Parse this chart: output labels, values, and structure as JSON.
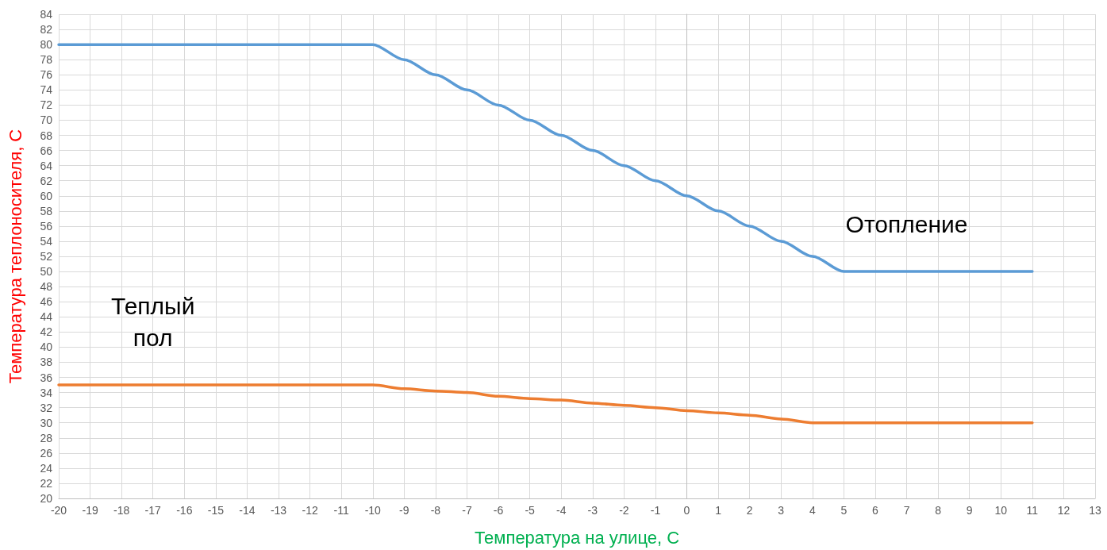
{
  "chart_data": {
    "type": "line",
    "xlabel": "Температура на улице, С",
    "ylabel": "Температура теплоносителя, С",
    "x": [
      -20,
      -19,
      -18,
      -17,
      -16,
      -15,
      -14,
      -13,
      -12,
      -11,
      -10,
      -9,
      -8,
      -7,
      -6,
      -5,
      -4,
      -3,
      -2,
      -1,
      0,
      1,
      2,
      3,
      4,
      5,
      6,
      7,
      8,
      9,
      10,
      11
    ],
    "series": [
      {
        "name": "Отопление",
        "color": "#5b9bd5",
        "values": [
          80,
          80,
          80,
          80,
          80,
          80,
          80,
          80,
          80,
          80,
          80,
          78,
          76,
          74,
          72,
          70,
          68,
          66,
          64,
          62,
          60,
          58,
          56,
          54,
          52,
          50,
          50,
          50,
          50,
          50,
          50,
          50
        ]
      },
      {
        "name": "Теплый пол",
        "color": "#ed7d31",
        "values": [
          35,
          35,
          35,
          35,
          35,
          35,
          35,
          35,
          35,
          35,
          35,
          34.5,
          34.2,
          34,
          33.5,
          33.2,
          33,
          32.6,
          32.3,
          32,
          31.6,
          31.3,
          31,
          30.5,
          30,
          30,
          30,
          30,
          30,
          30,
          30,
          30
        ]
      }
    ],
    "xlim": [
      -20,
      13
    ],
    "xticks": [
      -20,
      -19,
      -18,
      -17,
      -16,
      -15,
      -14,
      -13,
      -12,
      -11,
      -10,
      -9,
      -8,
      -7,
      -6,
      -5,
      -4,
      -3,
      -2,
      -1,
      0,
      1,
      2,
      3,
      4,
      5,
      6,
      7,
      8,
      9,
      10,
      11,
      12,
      13
    ],
    "ylim": [
      20,
      84
    ],
    "yticks": [
      20,
      22,
      24,
      26,
      28,
      30,
      32,
      34,
      36,
      38,
      40,
      42,
      44,
      46,
      48,
      50,
      52,
      54,
      56,
      58,
      60,
      62,
      64,
      66,
      68,
      70,
      72,
      74,
      76,
      78,
      80,
      82,
      84
    ],
    "grid": true,
    "marker": "none",
    "line_style": "solid",
    "legend": false
  }
}
